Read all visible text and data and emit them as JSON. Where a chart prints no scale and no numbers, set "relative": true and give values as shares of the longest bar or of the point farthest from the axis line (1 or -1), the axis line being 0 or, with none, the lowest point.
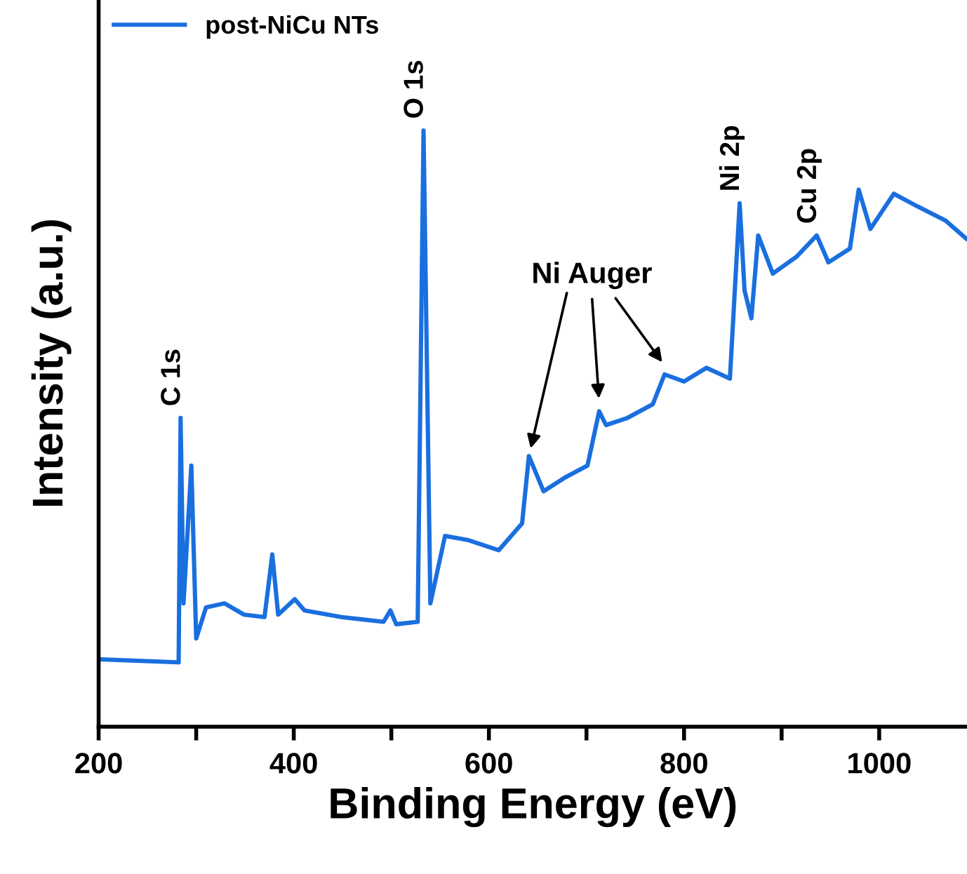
{
  "chart_data": {
    "type": "line",
    "relative": true,
    "xlabel": "Binding Energy (eV)",
    "ylabel": "Intensity (a.u.)",
    "xlim": [
      200,
      1090
    ],
    "xticks": [
      200,
      {
        "value": 300,
        "label": null
      },
      400,
      {
        "value": 500,
        "label": null
      },
      600,
      {
        "value": 700,
        "label": null
      },
      800,
      {
        "value": 900,
        "label": null
      },
      1000
    ],
    "legend": "top left",
    "grid": false,
    "series": [
      {
        "name": "post-NiCu NTs",
        "color": "#1a6fdf",
        "x": [
          203,
          282,
          284,
          287,
          295,
          300,
          310,
          329,
          349,
          370,
          378,
          384,
          401,
          411,
          449,
          492,
          499,
          505,
          527,
          533,
          540,
          555,
          579,
          610,
          634,
          641,
          656,
          679,
          701,
          713,
          720,
          742,
          768,
          780,
          800,
          823,
          847,
          857,
          862,
          869,
          876,
          891,
          915,
          936,
          948,
          970,
          979,
          991,
          1015,
          1039,
          1068,
          1089
        ],
        "values": [
          0.113,
          0.108,
          0.518,
          0.207,
          0.438,
          0.148,
          0.2,
          0.207,
          0.188,
          0.184,
          0.289,
          0.188,
          0.214,
          0.195,
          0.184,
          0.176,
          0.195,
          0.172,
          0.176,
          1.0,
          0.207,
          0.32,
          0.313,
          0.296,
          0.341,
          0.454,
          0.395,
          0.419,
          0.438,
          0.529,
          0.506,
          0.518,
          0.541,
          0.591,
          0.579,
          0.602,
          0.584,
          0.878,
          0.732,
          0.685,
          0.824,
          0.76,
          0.788,
          0.824,
          0.779,
          0.802,
          0.901,
          0.835,
          0.894,
          0.873,
          0.849,
          0.819
        ]
      }
    ],
    "annotations": [
      {
        "text": "C 1s",
        "x": 284,
        "y": 0.518
      },
      {
        "text": "O 1s",
        "x": 533,
        "y": 1.0
      },
      {
        "text": "Ni 2p",
        "x": 857,
        "y": 0.878
      },
      {
        "text": "Cu 2p",
        "x": 936,
        "y": 0.824
      },
      {
        "text": "Ni Auger",
        "x": 641,
        "y": 0.454
      }
    ]
  }
}
